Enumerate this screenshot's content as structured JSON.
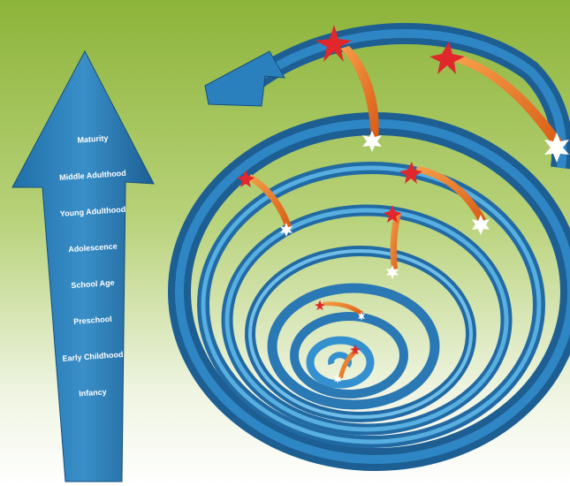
{
  "stages": [
    "Maturity",
    "Middle Adulthood",
    "Young Adulthood",
    "Adolescence",
    "School Age",
    "Preschool",
    "Early Childhood",
    "Infancy"
  ]
}
